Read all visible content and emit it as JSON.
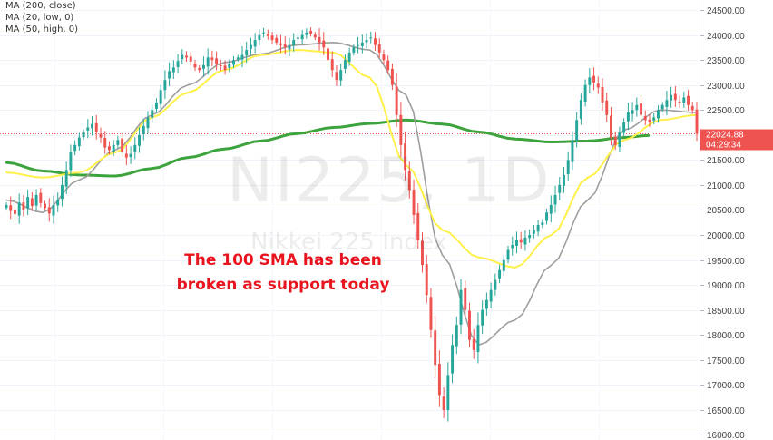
{
  "watermark": {
    "symbol": "NI225, 1D",
    "description": "Nikkei 225 Index"
  },
  "legend": [
    "MA (200, close)",
    "MA (20, low, 0)",
    "MA (50, high, 0)"
  ],
  "annotation": {
    "line1": "The 100 SMA has been",
    "line2": "broken as support today"
  },
  "price_label": {
    "value": "22024.88",
    "countdown": "04:29:34"
  },
  "colors": {
    "up": "#26a69a",
    "down": "#ef5350",
    "ma_green": "#3da33d",
    "ma_gray": "#9e9e9e",
    "ma_yellow": "#fff04a",
    "annotation": "#e8141e",
    "price_bg": "#ef5350",
    "axis_text": "#444444"
  },
  "chart_data": {
    "type": "candlestick",
    "y_axis": {
      "min": 15900,
      "max": 24700,
      "ticks": [
        16000,
        16500,
        17000,
        17500,
        18000,
        18500,
        19000,
        19500,
        20000,
        20500,
        21000,
        21500,
        22000,
        22500,
        23000,
        23500,
        24000,
        24500
      ],
      "tick_labels": [
        "16000.00",
        "16500.00",
        "17000.00",
        "17500.00",
        "18000.00",
        "18500.00",
        "19000.00",
        "19500.00",
        "20000.00",
        "20500.00",
        "21000.00",
        "21500.00",
        "22000.00",
        "22500.00",
        "23000.00",
        "23500.00",
        "24000.00",
        "24500.00"
      ]
    },
    "current_price": 22024.88,
    "close": [
      20600,
      20480,
      20420,
      20650,
      20500,
      20760,
      20580,
      20800,
      20640,
      20540,
      20430,
      20600,
      20700,
      21000,
      21300,
      21650,
      21800,
      21950,
      22050,
      22150,
      22220,
      22060,
      21950,
      21750,
      21700,
      21800,
      21900,
      21650,
      21550,
      21620,
      21800,
      22000,
      22180,
      22350,
      22500,
      22650,
      22900,
      23100,
      23280,
      23350,
      23480,
      23600,
      23550,
      23470,
      23350,
      23300,
      23400,
      23550,
      23500,
      23420,
      23380,
      23300,
      23420,
      23500,
      23550,
      23600,
      23700,
      23800,
      23900,
      24000,
      24050,
      23980,
      23900,
      23850,
      23800,
      23750,
      23800,
      23900,
      23950,
      24000,
      24050,
      24030,
      23950,
      23850,
      23750,
      23500,
      23300,
      23100,
      23300,
      23500,
      23650,
      23750,
      23800,
      23850,
      23900,
      23950,
      23800,
      23650,
      23500,
      23300,
      23000,
      22400,
      21800,
      21300,
      20900,
      20400,
      19900,
      19400,
      18800,
      18100,
      17400,
      16800,
      16500,
      17200,
      17800,
      18200,
      18900,
      18500,
      17900,
      17700,
      18200,
      18500,
      18700,
      18900,
      19100,
      19300,
      19500,
      19700,
      19800,
      19900,
      19850,
      19950,
      20000,
      20100,
      20200,
      20250,
      20450,
      20600,
      20800,
      21000,
      21200,
      21500,
      21900,
      22300,
      22700,
      23000,
      23150,
      23050,
      22950,
      22650,
      22400,
      21950,
      21800,
      22050,
      22250,
      22450,
      22500,
      22600,
      22400,
      22300,
      22250,
      22350,
      22500,
      22600,
      22700,
      22800,
      22700,
      22650,
      22750,
      22600,
      22500,
      22024.88
    ],
    "ma_200_close": [
      [
        0,
        21450
      ],
      [
        15,
        21280
      ],
      [
        30,
        21200
      ],
      [
        45,
        21180
      ],
      [
        60,
        21330
      ],
      [
        75,
        21550
      ],
      [
        90,
        21720
      ],
      [
        105,
        21880
      ],
      [
        120,
        22030
      ],
      [
        135,
        22150
      ],
      [
        150,
        22230
      ],
      [
        165,
        22300
      ],
      [
        180,
        22220
      ],
      [
        195,
        22060
      ],
      [
        210,
        21920
      ],
      [
        225,
        21860
      ],
      [
        240,
        21880
      ],
      [
        255,
        21950
      ],
      [
        265,
        21990
      ]
    ],
    "ma_20_low": [
      [
        0,
        20700
      ],
      [
        15,
        20450
      ],
      [
        30,
        21100
      ],
      [
        45,
        21700
      ],
      [
        60,
        22400
      ],
      [
        75,
        23000
      ],
      [
        90,
        23450
      ],
      [
        105,
        23620
      ],
      [
        120,
        23800
      ],
      [
        135,
        23850
      ],
      [
        150,
        23700
      ],
      [
        165,
        22800
      ],
      [
        180,
        19600
      ],
      [
        195,
        17800
      ],
      [
        210,
        18300
      ],
      [
        225,
        19400
      ],
      [
        240,
        20700
      ],
      [
        255,
        22100
      ],
      [
        270,
        22500
      ],
      [
        285,
        22450
      ]
    ],
    "ma_50_high": [
      [
        0,
        21250
      ],
      [
        15,
        21150
      ],
      [
        30,
        21250
      ],
      [
        45,
        21650
      ],
      [
        60,
        22350
      ],
      [
        75,
        22850
      ],
      [
        90,
        23300
      ],
      [
        105,
        23600
      ],
      [
        120,
        23700
      ],
      [
        135,
        23650
      ],
      [
        150,
        23150
      ],
      [
        165,
        21400
      ],
      [
        180,
        20100
      ],
      [
        195,
        19550
      ],
      [
        210,
        19350
      ],
      [
        225,
        20000
      ],
      [
        240,
        21150
      ],
      [
        255,
        21900
      ],
      [
        270,
        22300
      ],
      [
        285,
        22400
      ]
    ]
  }
}
